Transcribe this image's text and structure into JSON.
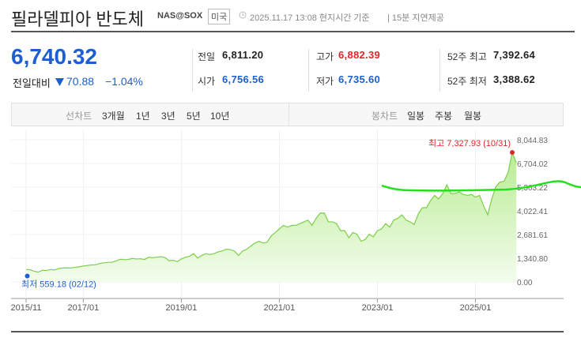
{
  "header": {
    "title": "필라델피아 반도체",
    "code": "NAS@SOX",
    "market": "미국",
    "time": "2025.11.17 13:08 현지시간 기준",
    "delay": "15분 지연제공"
  },
  "price": {
    "value": "6,740.32",
    "change_label": "전일대비",
    "change": "70.88",
    "change_pct": "−1.04%"
  },
  "stats": [
    {
      "label": "전일",
      "value": "6,811.20"
    },
    {
      "label": "고가",
      "value": "6,882.39"
    },
    {
      "label": "52주 최고",
      "value": "7,392.64"
    },
    {
      "label": "시가",
      "value": "6,756.56"
    },
    {
      "label": "저가",
      "value": "6,735.60"
    },
    {
      "label": "52주 최저",
      "value": "3,388.62"
    }
  ],
  "tabs": {
    "line_label": "선차트",
    "periods": [
      "3개월",
      "1년",
      "3년",
      "5년",
      "10년"
    ],
    "candle_label": "봉차트",
    "candles": [
      "일봉",
      "주봉",
      "월봉"
    ]
  },
  "chart_data": {
    "type": "area",
    "color": "#7ccf4a",
    "categories": [
      "2015/11",
      null,
      null,
      null,
      null,
      null,
      null,
      null,
      null,
      null,
      null,
      null,
      null,
      null,
      "2017/01",
      null,
      null,
      null,
      null,
      null,
      null,
      null,
      null,
      null,
      null,
      null,
      null,
      null,
      null,
      null,
      null,
      null,
      null,
      null,
      null,
      null,
      null,
      null,
      "2019/01",
      null,
      null,
      null,
      null,
      null,
      null,
      null,
      null,
      null,
      null,
      null,
      null,
      null,
      null,
      null,
      null,
      null,
      null,
      null,
      null,
      null,
      null,
      null,
      "2021/01",
      null,
      null,
      null,
      null,
      null,
      null,
      null,
      null,
      null,
      null,
      null,
      null,
      null,
      null,
      null,
      null,
      null,
      null,
      null,
      null,
      null,
      null,
      null,
      "2023/01",
      null,
      null,
      null,
      null,
      null,
      null,
      null,
      null,
      null,
      null,
      null,
      null,
      null,
      null,
      null,
      null,
      null,
      null,
      null,
      null,
      null,
      null,
      null,
      "2025/01",
      null,
      null,
      null,
      null,
      null,
      null,
      null,
      null,
      null,
      null
    ],
    "values": [
      700,
      690,
      600,
      559.18,
      660,
      650,
      700,
      680,
      760,
      790,
      800,
      790,
      830,
      860,
      900,
      930,
      960,
      970,
      1040,
      1080,
      1110,
      1110,
      1190,
      1280,
      1260,
      1270,
      1330,
      1300,
      1310,
      1270,
      1400,
      1370,
      1400,
      1430,
      1380,
      1200,
      1230,
      1150,
      1300,
      1400,
      1450,
      1600,
      1350,
      1500,
      1600,
      1550,
      1600,
      1700,
      1750,
      1850,
      1830,
      1750,
      1500,
      1750,
      1850,
      2030,
      2200,
      2300,
      2200,
      2250,
      2600,
      2800,
      3000,
      3200,
      3100,
      3200,
      3200,
      3300,
      3400,
      3500,
      3200,
      3600,
      3900,
      3900,
      3400,
      3400,
      3300,
      2900,
      2900,
      2500,
      2800,
      2700,
      2300,
      2400,
      2700,
      2550,
      2900,
      3000,
      3300,
      3100,
      3500,
      3600,
      3800,
      3500,
      3400,
      3250,
      3850,
      4200,
      4200,
      4600,
      4900,
      4700,
      5000,
      5500,
      5000,
      5000,
      5100,
      4950,
      4900,
      4950,
      4800,
      4900,
      4300,
      3800,
      4700,
      5400,
      5650,
      5700,
      6200,
      7327.93,
      6740.32
    ],
    "ylim": [
      0,
      8044.83
    ],
    "yticks": [
      {
        "value": 8044.83,
        "label": "8,044.83"
      },
      {
        "value": 6704.02,
        "label": "6,704.02"
      },
      {
        "value": 5363.22,
        "label": "5,363.22"
      },
      {
        "value": 4022.41,
        "label": "4,022.41"
      },
      {
        "value": 2681.61,
        "label": "2,681.61"
      },
      {
        "value": 1340.8,
        "label": "1,340.80"
      },
      {
        "value": 0,
        "label": "0.00"
      }
    ],
    "high": {
      "value": 7327.93,
      "label": "최고 7,327.93 (10/31)"
    },
    "low": {
      "value": 559.18,
      "label": "최저 559.18 (02/12)"
    }
  }
}
